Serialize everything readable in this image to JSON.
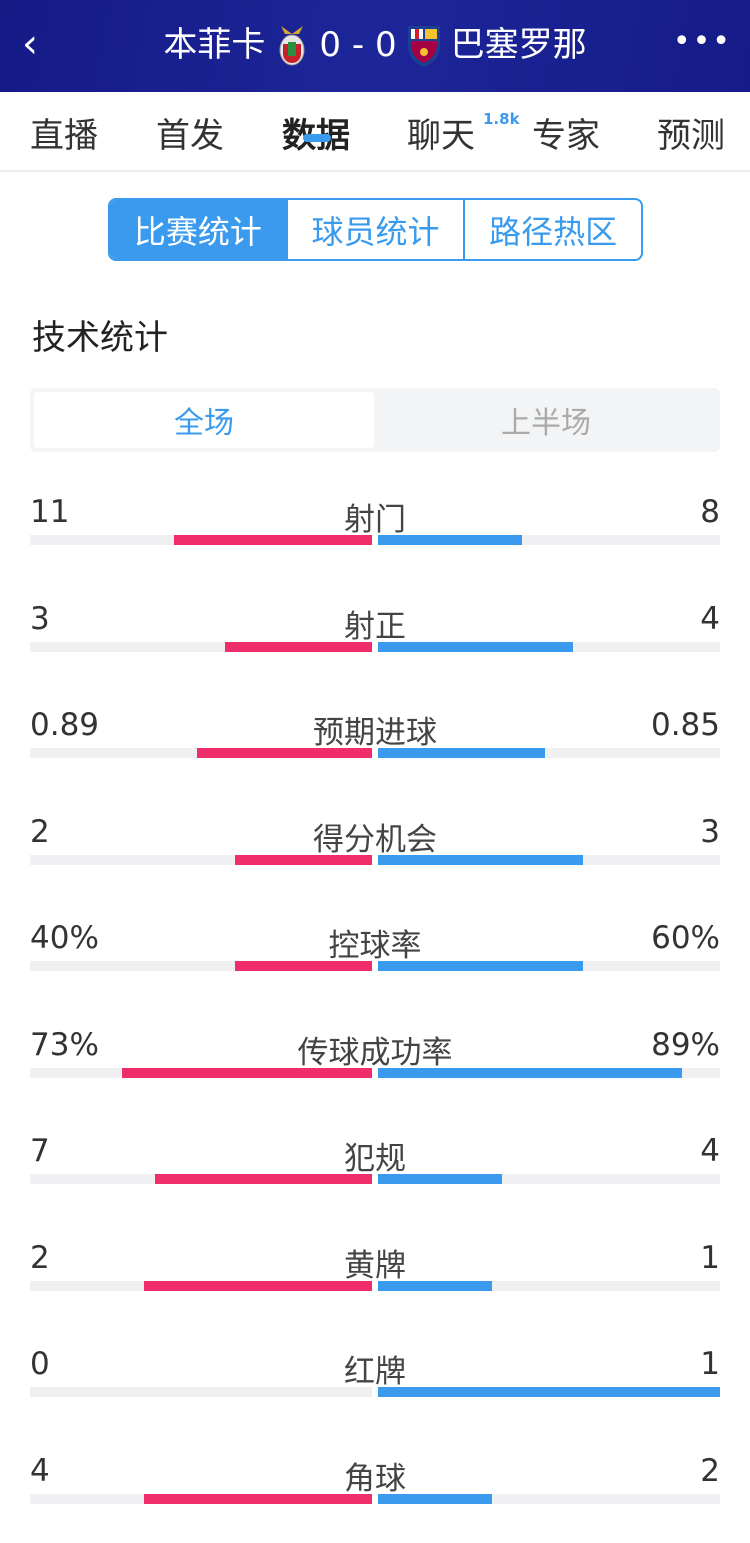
{
  "header": {
    "back_icon": "chevron-left-icon",
    "home_team": "本菲卡",
    "score": "0 - 0",
    "away_team": "巴塞罗那",
    "home_crest": "benfica-crest-icon",
    "away_crest": "barcelona-crest-icon",
    "more_icon": "more-dots-icon"
  },
  "tabs": [
    {
      "label": "直播"
    },
    {
      "label": "首发"
    },
    {
      "label": "数据",
      "active": true
    },
    {
      "label": "聊天",
      "badge": "1.8k"
    },
    {
      "label": "专家"
    },
    {
      "label": "预测"
    }
  ],
  "segments": [
    "比赛统计",
    "球员统计",
    "路径热区"
  ],
  "section_title": "技术统计",
  "periods": [
    "全场",
    "上半场"
  ],
  "colors": {
    "home": "#ee2d6a",
    "away": "#3a9bee",
    "header": "#1a2190"
  },
  "stats": [
    {
      "label": "射门",
      "home": "11",
      "away": "8",
      "home_share": 0.579,
      "away_share": 0.421
    },
    {
      "label": "射正",
      "home": "3",
      "away": "4",
      "home_share": 0.429,
      "away_share": 0.571
    },
    {
      "label": "预期进球",
      "home": "0.89",
      "away": "0.85",
      "home_share": 0.512,
      "away_share": 0.488
    },
    {
      "label": "得分机会",
      "home": "2",
      "away": "3",
      "home_share": 0.4,
      "away_share": 0.6
    },
    {
      "label": "控球率",
      "home": "40%",
      "away": "60%",
      "home_share": 0.4,
      "away_share": 0.6
    },
    {
      "label": "传球成功率",
      "home": "73%",
      "away": "89%",
      "home_share": 0.73,
      "away_share": 0.89
    },
    {
      "label": "犯规",
      "home": "7",
      "away": "4",
      "home_share": 0.636,
      "away_share": 0.364
    },
    {
      "label": "黄牌",
      "home": "2",
      "away": "1",
      "home_share": 0.667,
      "away_share": 0.333
    },
    {
      "label": "红牌",
      "home": "0",
      "away": "1",
      "home_share": 0,
      "away_share": 1
    },
    {
      "label": "角球",
      "home": "4",
      "away": "2",
      "home_share": 0.667,
      "away_share": 0.333
    }
  ]
}
